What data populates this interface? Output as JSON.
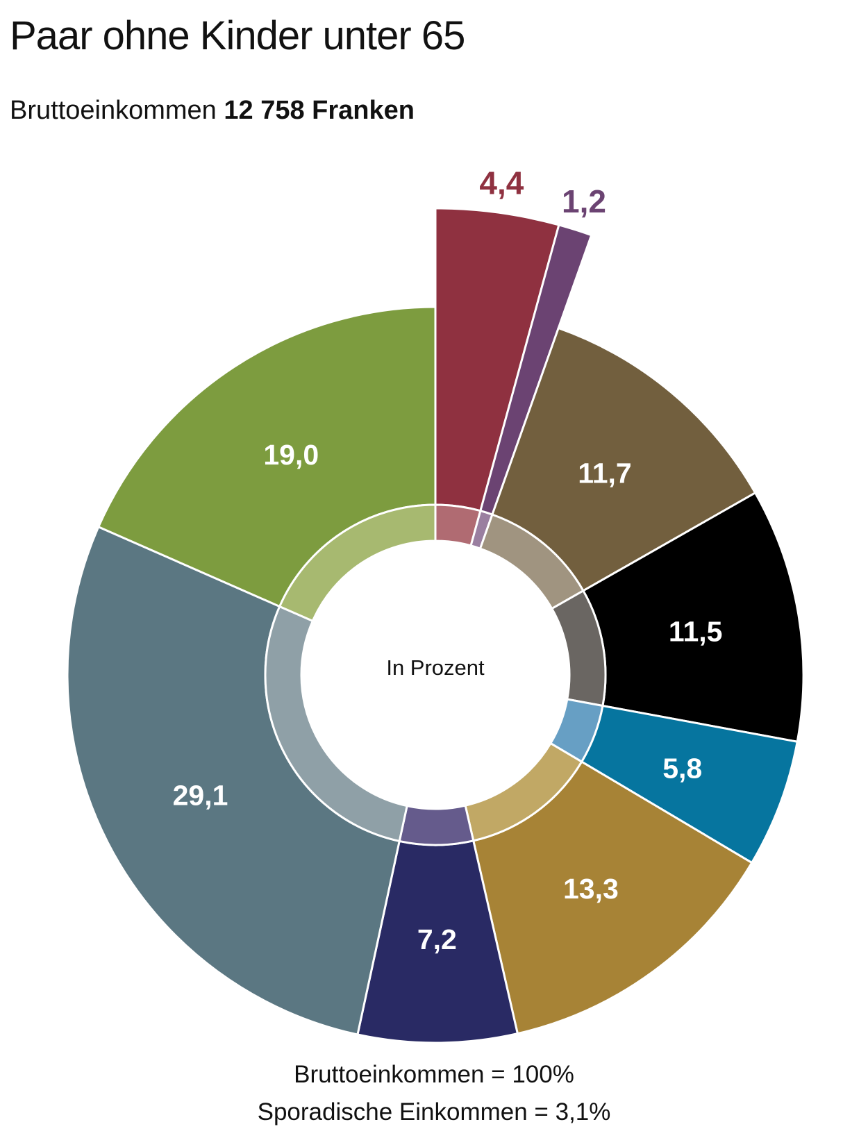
{
  "title": "Paar ohne Kinder unter 65",
  "subtitle": {
    "prefix": "Bruttoeinkommen ",
    "amount": "12 758 Franken"
  },
  "center_label": "In Prozent",
  "footnotes": [
    "Bruttoeinkommen = 100%",
    "Sporadische Einkommen  = 3,1%"
  ],
  "chart_data": {
    "type": "pie",
    "title": "Paar ohne Kinder unter 65",
    "subtitle": "Bruttoeinkommen 12 758 Franken",
    "slices": [
      {
        "value": 4.4,
        "label": "4,4",
        "color": "#8f3140",
        "inner": "#b06b72",
        "exploded": true,
        "label_color": "#8f3140"
      },
      {
        "value": 1.2,
        "label": "1,2",
        "color": "#6b4372",
        "inner": "#9a7fa0",
        "exploded": true,
        "label_color": "#6b4372"
      },
      {
        "value": 11.7,
        "label": "11,7",
        "color": "#725f3e",
        "inner": "#a09480",
        "exploded": false,
        "label_color": "#ffffff"
      },
      {
        "value": 11.5,
        "label": "11,5",
        "color": "#000000",
        "inner": "#6a6662",
        "exploded": false,
        "label_color": "#ffffff"
      },
      {
        "value": 5.8,
        "label": "5,8",
        "color": "#06759f",
        "inner": "#679fc4",
        "exploded": false,
        "label_color": "#ffffff"
      },
      {
        "value": 13.3,
        "label": "13,3",
        "color": "#a78336",
        "inner": "#c1a865",
        "exploded": false,
        "label_color": "#ffffff"
      },
      {
        "value": 7.2,
        "label": "7,2",
        "color": "#292a64",
        "inner": "#655b8c",
        "exploded": false,
        "label_color": "#ffffff"
      },
      {
        "value": 29.1,
        "label": "29,1",
        "color": "#5b7782",
        "inner": "#8fa0a7",
        "exploded": false,
        "label_color": "#ffffff"
      },
      {
        "value": 19.0,
        "label": "19,0",
        "color": "#7d9c3f",
        "inner": "#a7b970",
        "exploded": false,
        "label_color": "#ffffff"
      }
    ]
  }
}
